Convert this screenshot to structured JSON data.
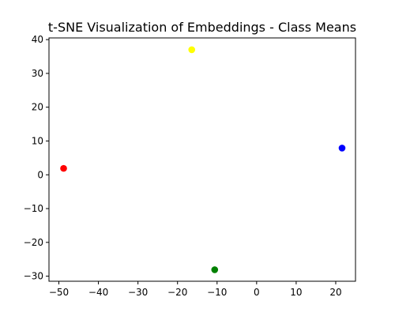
{
  "chart_data": {
    "type": "scatter",
    "title": "t-SNE Visualization of Embeddings - Class Means",
    "xlabel": "",
    "ylabel": "",
    "xlim": [
      -52.5,
      25.0
    ],
    "ylim": [
      -31.5,
      40.5
    ],
    "grid": false,
    "x_ticks": [
      -50,
      -40,
      -30,
      -20,
      -10,
      0,
      10,
      20
    ],
    "y_ticks": [
      -30,
      -20,
      -10,
      0,
      10,
      20,
      30,
      40
    ],
    "x_tick_labels": [
      "−50",
      "−40",
      "−30",
      "−20",
      "−10",
      "0",
      "10",
      "20"
    ],
    "y_tick_labels": [
      "−30",
      "−20",
      "−10",
      "0",
      "10",
      "20",
      "30",
      "40"
    ],
    "points": [
      {
        "x": -48.8,
        "y": 1.9,
        "color": "#ff0000"
      },
      {
        "x": -16.4,
        "y": 37.0,
        "color": "#ffff00"
      },
      {
        "x": -10.6,
        "y": -28.1,
        "color": "#008000"
      },
      {
        "x": 21.6,
        "y": 7.9,
        "color": "#0000ff"
      }
    ]
  }
}
